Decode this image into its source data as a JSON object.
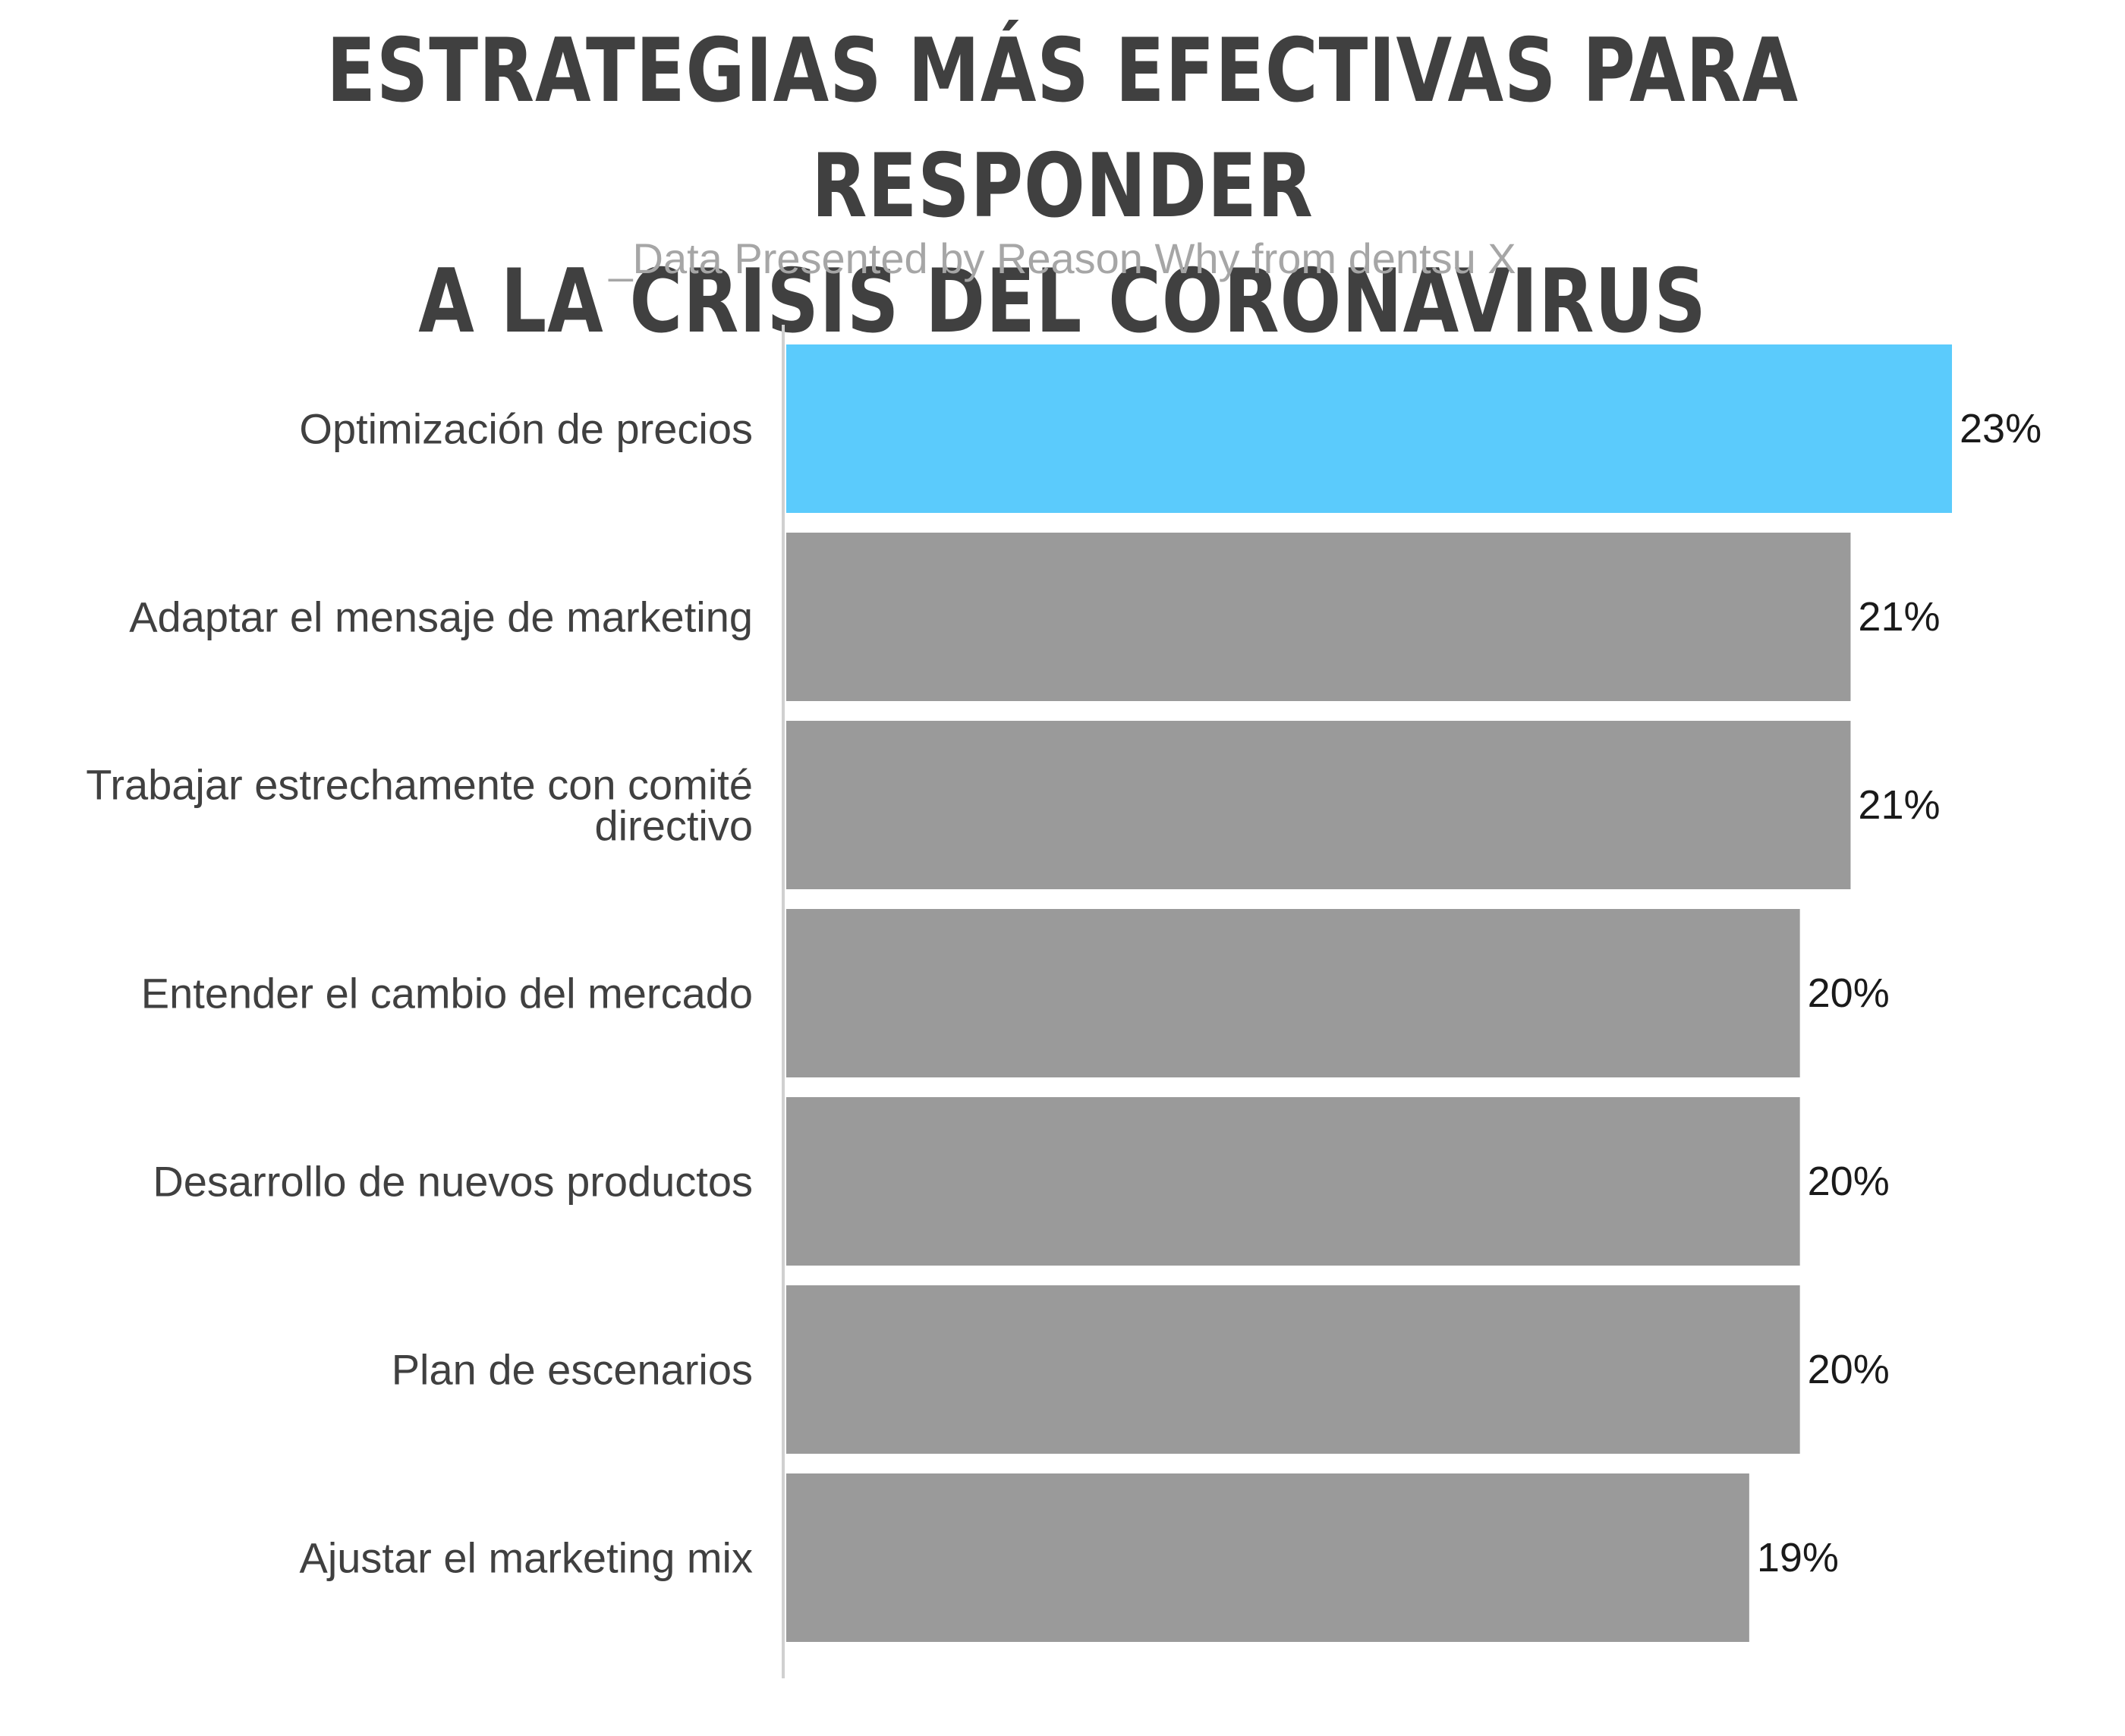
{
  "chart_data": {
    "type": "bar",
    "orientation": "horizontal",
    "title_lines": [
      "ESTRATEGIAS MÁS EFECTIVAS PARA RESPONDER",
      "A LA CRISIS DEL CORONAVIRUS"
    ],
    "subtitle": "_Data Presented by Reason Why from dentsu X",
    "categories": [
      [
        "Optimización de precios"
      ],
      [
        "Adaptar el mensaje de marketing"
      ],
      [
        "Trabajar estrechamente con comité",
        "directivo"
      ],
      [
        "Entender el cambio del mercado"
      ],
      [
        "Desarrollo de nuevos productos"
      ],
      [
        "Plan de escenarios"
      ],
      [
        "Ajustar el marketing mix"
      ]
    ],
    "values": [
      23,
      21,
      21,
      20,
      20,
      20,
      19
    ],
    "value_labels": [
      "23%",
      "21%",
      "21%",
      "20%",
      "20%",
      "20%",
      "19%"
    ],
    "unit": "%",
    "xlim": [
      0,
      23
    ],
    "colors": {
      "highlight": "#5bcbfc",
      "default": "#9a9a9a",
      "axis": "#d0d0d0"
    },
    "highlight_index": 0,
    "grid": false,
    "legend": "none"
  }
}
